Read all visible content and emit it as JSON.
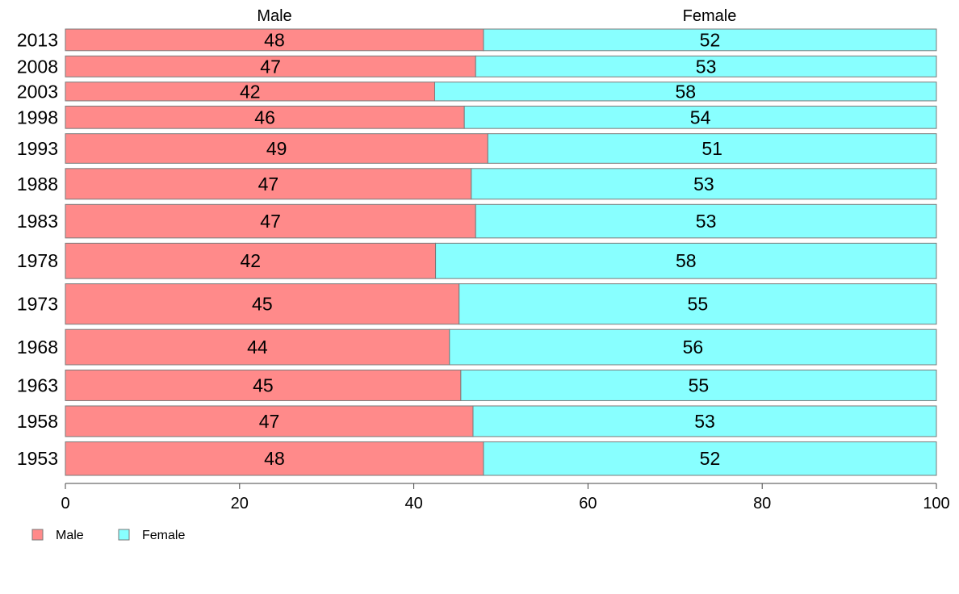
{
  "chart_data": {
    "type": "bar",
    "orientation": "horizontal",
    "stacked": true,
    "categories": [
      "2013",
      "2008",
      "2003",
      "1998",
      "1993",
      "1988",
      "1983",
      "1978",
      "1973",
      "1968",
      "1963",
      "1958",
      "1953"
    ],
    "series": [
      {
        "name": "Male",
        "color": "#ff8a8a",
        "values": [
          48,
          47,
          42,
          46,
          49,
          47,
          47,
          42,
          45,
          44,
          45,
          47,
          48
        ],
        "plot_values": [
          48,
          47.1,
          42.4,
          45.8,
          48.5,
          46.6,
          47.1,
          42.5,
          45.2,
          44.1,
          45.4,
          46.8,
          48
        ]
      },
      {
        "name": "Female",
        "color": "#88ffff",
        "values": [
          52,
          53,
          58,
          54,
          51,
          53,
          53,
          58,
          55,
          56,
          55,
          53,
          52
        ],
        "plot_values": [
          52,
          52.9,
          57.6,
          54.2,
          51.5,
          53.4,
          52.9,
          57.5,
          54.8,
          55.9,
          54.6,
          53.2,
          52
        ]
      }
    ],
    "bar_weights": [
      0.6,
      0.58,
      0.52,
      0.62,
      0.82,
      0.85,
      0.93,
      0.98,
      1.12,
      0.98,
      0.85,
      0.85,
      0.93
    ],
    "xlim": [
      0,
      100
    ],
    "xticks": [
      0,
      20,
      40,
      60,
      80,
      100
    ],
    "column_headers": [
      "Male",
      "Female"
    ],
    "legend": {
      "position": "bottom-left",
      "entries": [
        "Male",
        "Female"
      ]
    },
    "grid": false
  }
}
